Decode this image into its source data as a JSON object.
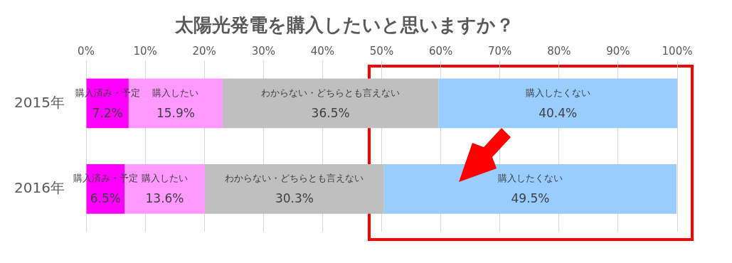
{
  "chart_data": {
    "type": "bar",
    "orientation": "horizontal",
    "stacked": true,
    "title": "太陽光発電を購入したいと思いますか？",
    "categories": [
      "2015年",
      "2016年"
    ],
    "series": [
      {
        "name": "購入済み・予定",
        "color": "#ff00ff",
        "values": [
          7.2,
          6.5
        ],
        "value_labels": [
          "7.2%",
          "6.5%"
        ]
      },
      {
        "name": "購入したい",
        "color": "#ff99ff",
        "values": [
          15.9,
          13.6
        ],
        "value_labels": [
          "15.9%",
          "13.6%"
        ]
      },
      {
        "name": "わからない・どちらとも言えない",
        "color": "#bfbfbf",
        "values": [
          36.5,
          30.3
        ],
        "value_labels": [
          "36.5%",
          "30.3%"
        ]
      },
      {
        "name": "購入したくない",
        "color": "#99ccff",
        "values": [
          40.4,
          49.5
        ],
        "value_labels": [
          "40.4%",
          "49.5%"
        ]
      }
    ],
    "xlim": [
      0,
      100
    ],
    "xticks": [
      {
        "value": 0,
        "label": "0%"
      },
      {
        "value": 10,
        "label": "10%"
      },
      {
        "value": 20,
        "label": "20%"
      },
      {
        "value": 30,
        "label": "30%"
      },
      {
        "value": 40,
        "label": "40%"
      },
      {
        "value": 50,
        "label": "50%"
      },
      {
        "value": 60,
        "label": "60%"
      },
      {
        "value": 70,
        "label": "70%"
      },
      {
        "value": 80,
        "label": "80%"
      },
      {
        "value": 90,
        "label": "90%"
      },
      {
        "value": 100,
        "label": "100%"
      }
    ],
    "grid": "x",
    "legend": false
  }
}
